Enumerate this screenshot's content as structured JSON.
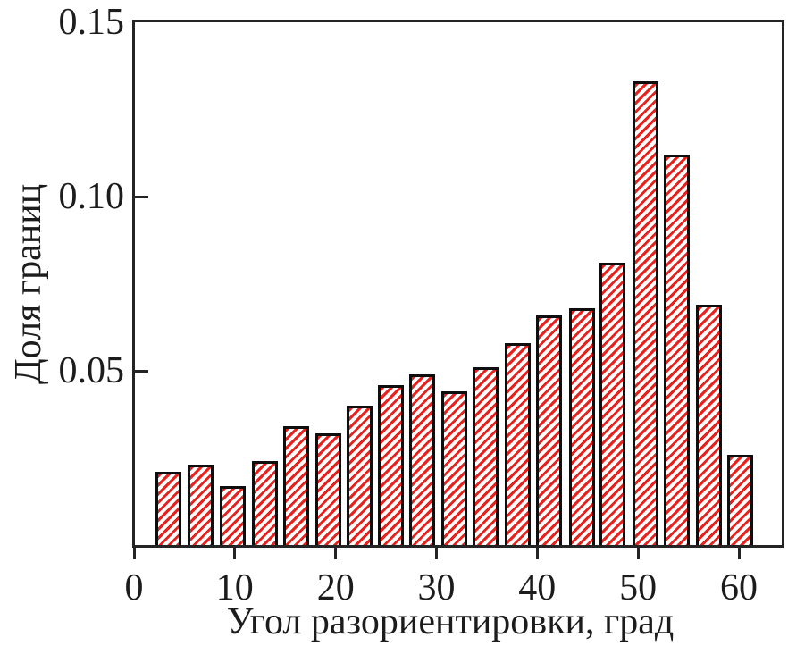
{
  "chart_data": {
    "type": "bar",
    "title": "",
    "xlabel": "Угол разориентировки, град",
    "ylabel": "Доля границ",
    "xlim": [
      0,
      64.3
    ],
    "ylim": [
      0,
      0.15
    ],
    "grid": false,
    "legend": false,
    "x_ticks": [
      {
        "value": 0,
        "label": "0"
      },
      {
        "value": 10,
        "label": "10"
      },
      {
        "value": 20,
        "label": "20"
      },
      {
        "value": 30,
        "label": "30"
      },
      {
        "value": 40,
        "label": "40"
      },
      {
        "value": 50,
        "label": "50"
      },
      {
        "value": 60,
        "label": "60"
      }
    ],
    "y_ticks": [
      {
        "value": 0.05,
        "label": "0.05"
      },
      {
        "value": 0.1,
        "label": "0.10"
      },
      {
        "value": 0.15,
        "label": "0.15"
      }
    ],
    "bar_width_deg": 2.57,
    "bars": [
      {
        "center": 3.4,
        "value": 0.021
      },
      {
        "center": 6.6,
        "value": 0.023
      },
      {
        "center": 9.8,
        "value": 0.017
      },
      {
        "center": 13.0,
        "value": 0.024
      },
      {
        "center": 16.1,
        "value": 0.034
      },
      {
        "center": 19.3,
        "value": 0.032
      },
      {
        "center": 22.4,
        "value": 0.04
      },
      {
        "center": 25.5,
        "value": 0.046
      },
      {
        "center": 28.6,
        "value": 0.049
      },
      {
        "center": 31.8,
        "value": 0.044
      },
      {
        "center": 34.9,
        "value": 0.051
      },
      {
        "center": 38.1,
        "value": 0.058
      },
      {
        "center": 41.2,
        "value": 0.066
      },
      {
        "center": 44.4,
        "value": 0.068
      },
      {
        "center": 47.5,
        "value": 0.081
      },
      {
        "center": 50.7,
        "value": 0.133
      },
      {
        "center": 53.8,
        "value": 0.112
      },
      {
        "center": 57.0,
        "value": 0.069
      },
      {
        "center": 60.1,
        "value": 0.026
      }
    ]
  },
  "styles": {
    "bar_hatch_color": "#e8211d",
    "bar_outline_color": "#0e0e0e",
    "axis_color": "#242424",
    "text_color": "#1c1c1c",
    "background": "#ffffff"
  }
}
